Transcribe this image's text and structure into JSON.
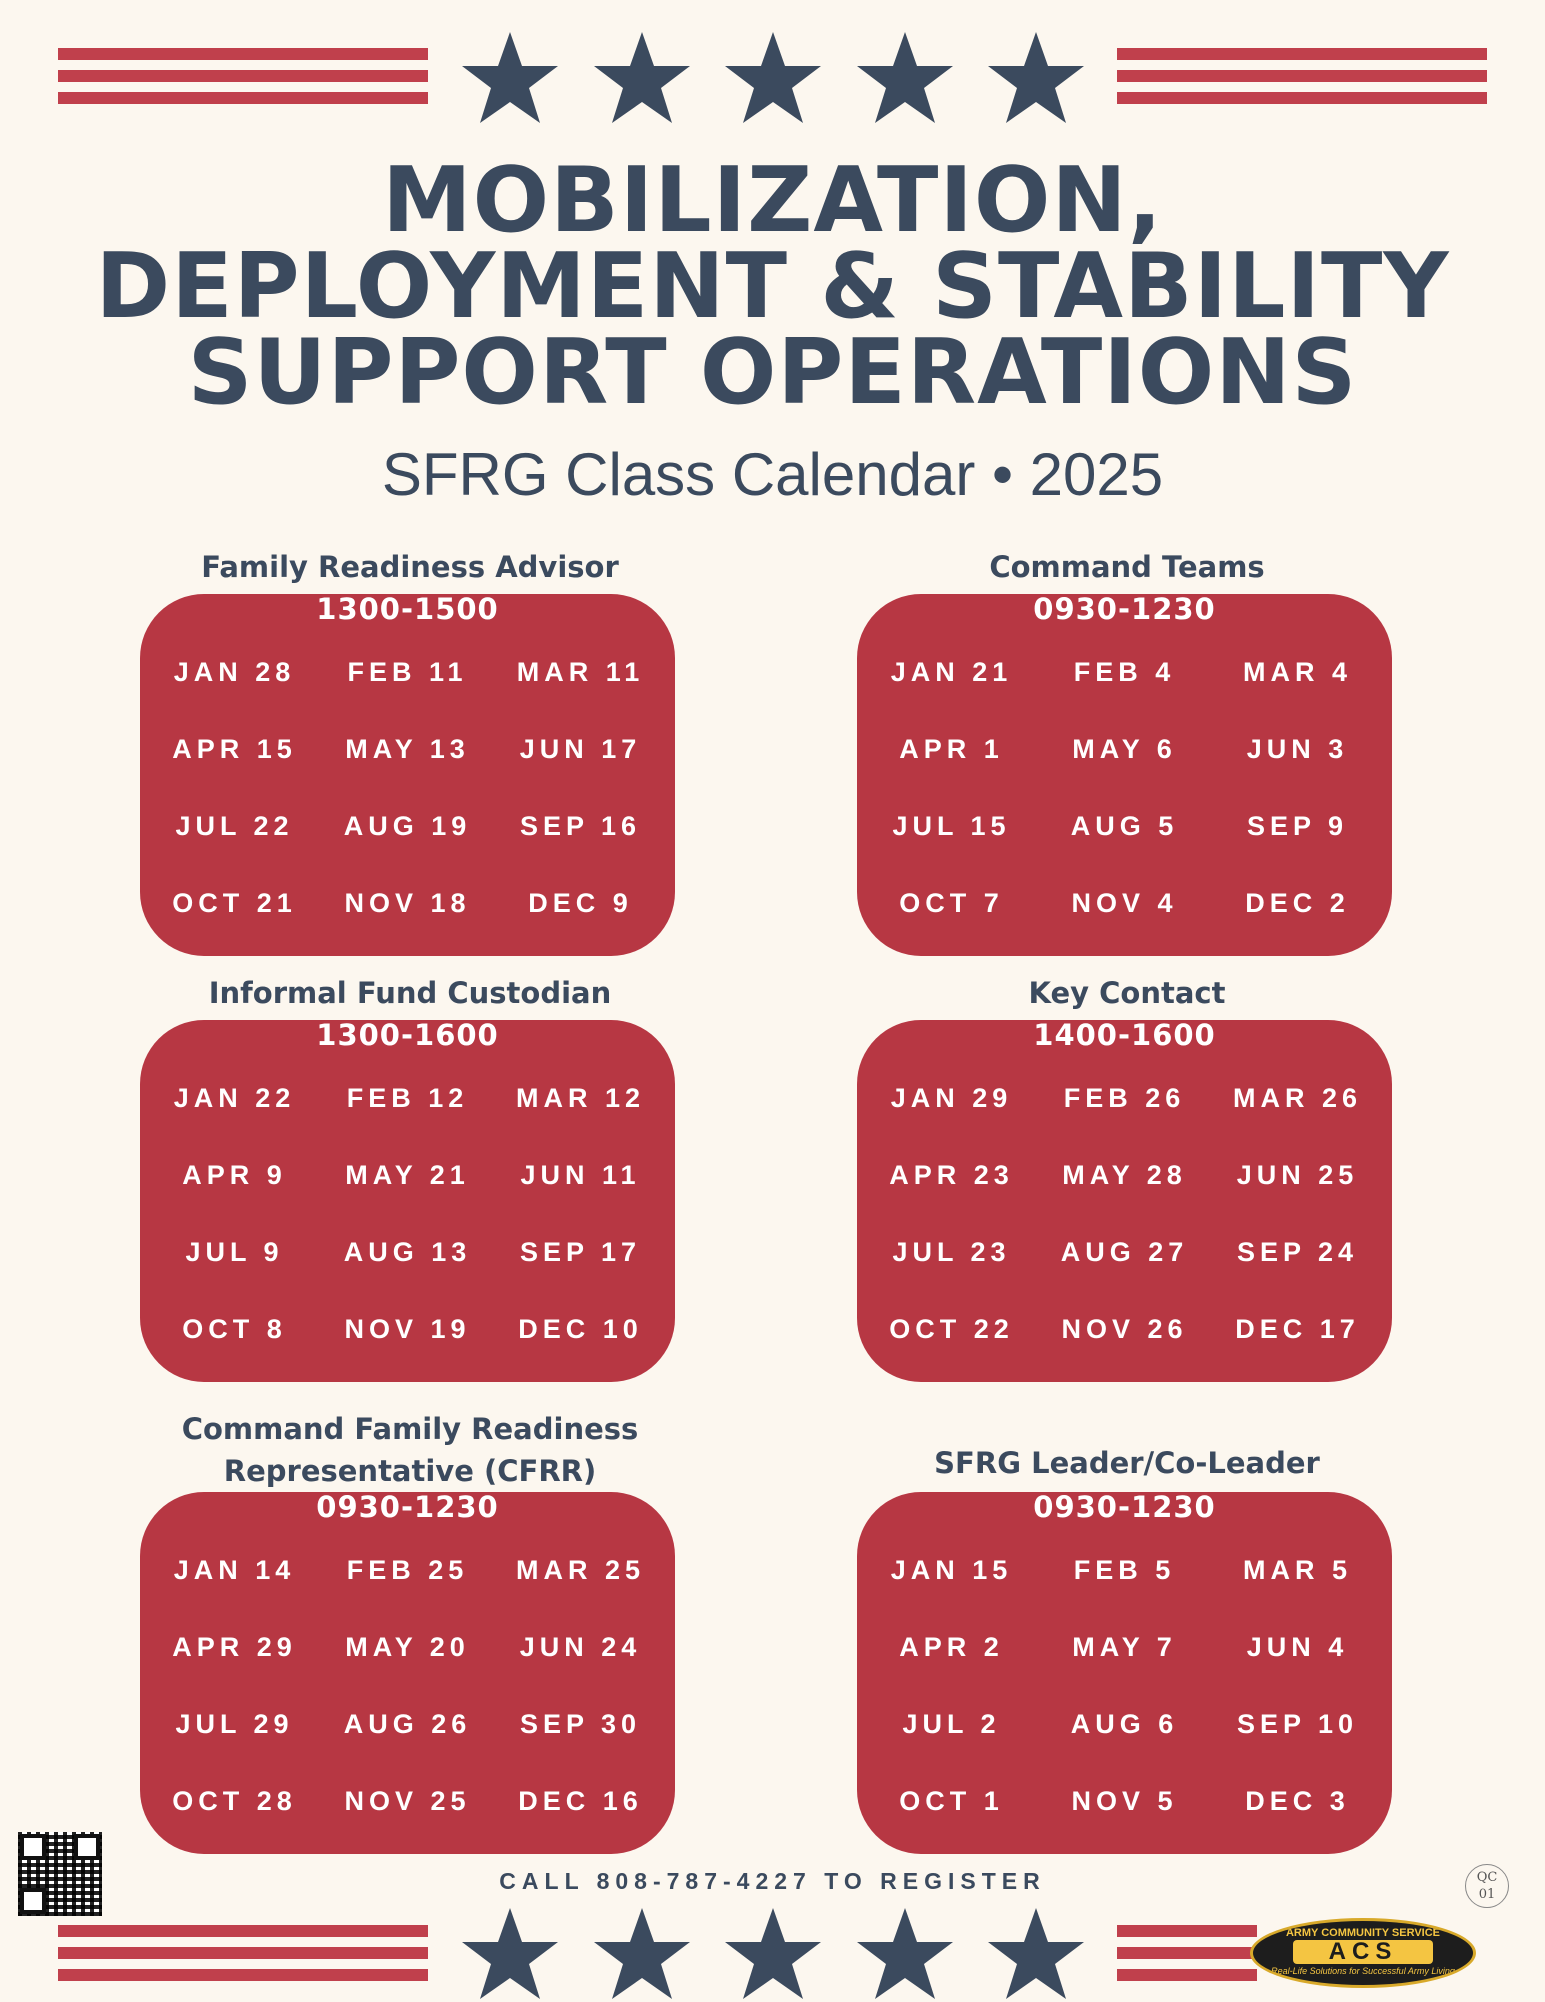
{
  "header": {
    "title_lines": [
      "MOBILIZATION,",
      "DEPLOYMENT & STABILITY",
      "SUPPORT OPERATIONS"
    ],
    "subtitle": "SFRG Class Calendar • 2025"
  },
  "colors": {
    "navy": "#3b4a5e",
    "red": "#b73743",
    "stripe": "#c0404c",
    "background": "#fcf7ef"
  },
  "icons": {
    "star": "star-icon",
    "qr": "qr-code-icon"
  },
  "sections": [
    {
      "title_lines": [
        "Family Readiness Advisor"
      ],
      "time": "1300-1500",
      "dates": [
        "JAN 28",
        "FEB 11",
        "MAR 11",
        "APR 15",
        "MAY 13",
        "JUN 17",
        "JUL 22",
        "AUG 19",
        "SEP 16",
        "OCT 21",
        "NOV 18",
        "DEC 9"
      ]
    },
    {
      "title_lines": [
        "Command Teams"
      ],
      "time": "0930-1230",
      "dates": [
        "JAN 21",
        "FEB 4",
        "MAR 4",
        "APR 1",
        "MAY 6",
        "JUN 3",
        "JUL 15",
        "AUG 5",
        "SEP 9",
        "OCT 7",
        "NOV 4",
        "DEC 2"
      ]
    },
    {
      "title_lines": [
        "Informal Fund Custodian"
      ],
      "time": "1300-1600",
      "dates": [
        "JAN 22",
        "FEB 12",
        "MAR 12",
        "APR 9",
        "MAY 21",
        "JUN 11",
        "JUL 9",
        "AUG 13",
        "SEP 17",
        "OCT 8",
        "NOV 19",
        "DEC 10"
      ]
    },
    {
      "title_lines": [
        "Key Contact"
      ],
      "time": "1400-1600",
      "dates": [
        "JAN 29",
        "FEB 26",
        "MAR 26",
        "APR 23",
        "MAY 28",
        "JUN 25",
        "JUL 23",
        "AUG 27",
        "SEP 24",
        "OCT 22",
        "NOV 26",
        "DEC 17"
      ]
    },
    {
      "title_lines": [
        "Command Family Readiness",
        "Representative (CFRR)"
      ],
      "time": "0930-1230",
      "dates": [
        "JAN 14",
        "FEB 25",
        "MAR 25",
        "APR 29",
        "MAY 20",
        "JUN 24",
        "JUL 29",
        "AUG 26",
        "SEP 30",
        "OCT 28",
        "NOV 25",
        "DEC 16"
      ]
    },
    {
      "title_lines": [
        "SFRG Leader/Co-Leader"
      ],
      "time": "0930-1230",
      "dates": [
        "JAN 15",
        "FEB 5",
        "MAR 5",
        "APR 2",
        "MAY 7",
        "JUN 4",
        "JUL 2",
        "AUG 6",
        "SEP 10",
        "OCT 1",
        "NOV 5",
        "DEC 3"
      ]
    }
  ],
  "footer": {
    "register": "CALL 808-787-4227 TO REGISTER"
  },
  "badge": {
    "line1": "QC",
    "line2": "01"
  },
  "logo": {
    "top": "ARMY COMMUNITY SERVICE",
    "main": "ACS",
    "tagline": "Real-Life Solutions for Successful Army Living"
  }
}
